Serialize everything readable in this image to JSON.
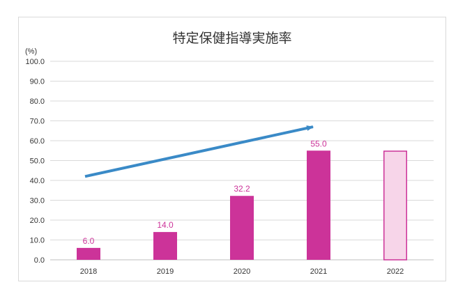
{
  "chart_data": {
    "type": "bar",
    "title": "特定保健指導実施率",
    "unit_label": "(%)",
    "xlabel": "",
    "ylabel": "",
    "categories": [
      "2018",
      "2019",
      "2020",
      "2021",
      "2022"
    ],
    "series": [
      {
        "values": [
          6.0,
          14.0,
          32.2,
          55.0,
          55.0
        ],
        "data_labels": [
          "6.0",
          "14.0",
          "32.2",
          "55.0",
          ""
        ],
        "styles": [
          "solid",
          "solid",
          "solid",
          "solid",
          "outline"
        ]
      }
    ],
    "ylim": [
      0,
      100
    ],
    "yticks": [
      "0.0",
      "10.0",
      "20.0",
      "30.0",
      "40.0",
      "50.0",
      "60.0",
      "70.0",
      "80.0",
      "90.0",
      "100.0"
    ],
    "grid": true,
    "legend": "none",
    "trend_arrow": {
      "from": {
        "x": "2018",
        "y": 42
      },
      "to": {
        "x": "2021",
        "y": 67
      }
    },
    "colors": {
      "bar": "#cc3399",
      "bar_outline_fill": "#f7d5e9",
      "label": "#cc3399",
      "arrow": "#3a8ac7",
      "grid": "#d9d9d9",
      "axis": "#bfbfbf"
    }
  }
}
